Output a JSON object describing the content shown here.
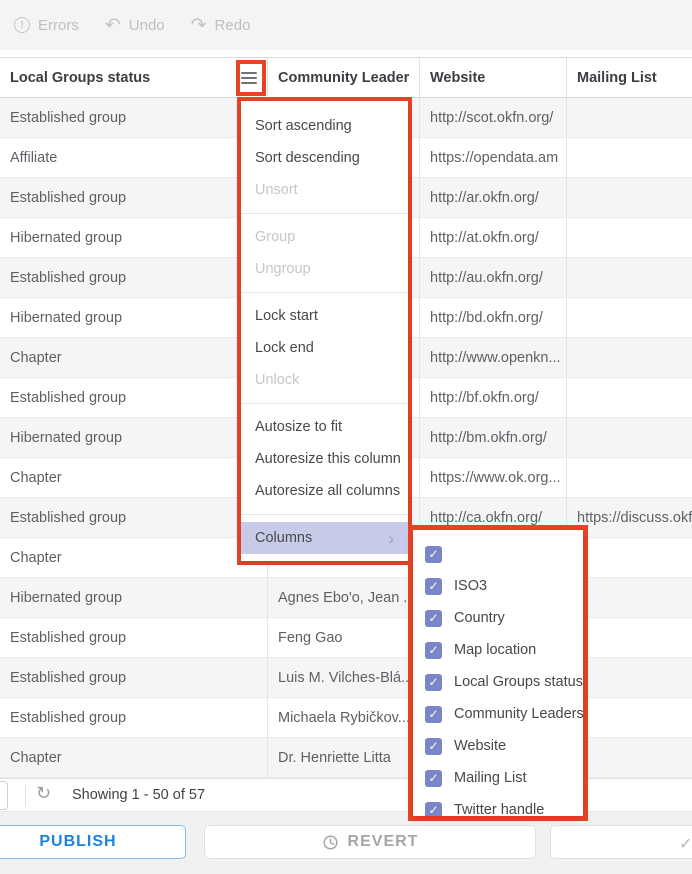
{
  "toolbar": {
    "errors_label": "Errors",
    "undo_label": "Undo",
    "redo_label": "Redo"
  },
  "grid": {
    "columns": [
      "Local Groups status",
      "Community Leader...",
      "Website",
      "Mailing List"
    ],
    "rows": [
      {
        "status": "Established group",
        "leader": "",
        "website": "http://scot.okfn.org/",
        "mailing": ""
      },
      {
        "status": "Affiliate",
        "leader": "",
        "website": "https://opendata.am",
        "mailing": ""
      },
      {
        "status": "Established group",
        "leader": "",
        "website": "http://ar.okfn.org/",
        "mailing": ""
      },
      {
        "status": "Hibernated group",
        "leader": "",
        "website": "http://at.okfn.org/",
        "mailing": ""
      },
      {
        "status": "Established group",
        "leader": "",
        "website": "http://au.okfn.org/",
        "mailing": ""
      },
      {
        "status": "Hibernated group",
        "leader": "",
        "website": "http://bd.okfn.org/",
        "mailing": ""
      },
      {
        "status": "Chapter",
        "leader": "",
        "website": "http://www.openkn...",
        "mailing": ""
      },
      {
        "status": "Established group",
        "leader": "",
        "website": "http://bf.okfn.org/",
        "mailing": ""
      },
      {
        "status": "Hibernated group",
        "leader": "",
        "website": "http://bm.okfn.org/",
        "mailing": ""
      },
      {
        "status": "Chapter",
        "leader": "",
        "website": "https://www.ok.org...",
        "mailing": ""
      },
      {
        "status": "Established group",
        "leader": "",
        "website": "http://ca.okfn.org/",
        "mailing": "https://discuss.okf"
      },
      {
        "status": "Chapter",
        "leader": "",
        "website": "",
        "mailing": ""
      },
      {
        "status": "Hibernated group",
        "leader": "Agnes Ebo'o, Jean ...",
        "website": "",
        "mailing": ""
      },
      {
        "status": "Established group",
        "leader": "Feng Gao",
        "website": "",
        "mailing": ""
      },
      {
        "status": "Established group",
        "leader": "Luis M. Vilches-Blá..",
        "website": "",
        "mailing": ""
      },
      {
        "status": "Established group",
        "leader": "Michaela Rybičkov...",
        "website": "",
        "mailing": ""
      },
      {
        "status": "Chapter",
        "leader": "Dr. Henriette Litta",
        "website": "",
        "mailing": ""
      }
    ]
  },
  "menu": {
    "items": [
      {
        "label": "Sort ascending",
        "enabled": true
      },
      {
        "label": "Sort descending",
        "enabled": true
      },
      {
        "label": "Unsort",
        "enabled": false
      },
      {
        "type": "separator"
      },
      {
        "label": "Group",
        "enabled": false
      },
      {
        "label": "Ungroup",
        "enabled": false
      },
      {
        "type": "separator"
      },
      {
        "label": "Lock start",
        "enabled": true
      },
      {
        "label": "Lock end",
        "enabled": true
      },
      {
        "label": "Unlock",
        "enabled": false
      },
      {
        "type": "separator"
      },
      {
        "label": "Autosize to fit",
        "enabled": true
      },
      {
        "label": "Autoresize this column",
        "enabled": true
      },
      {
        "label": "Autoresize all columns",
        "enabled": true
      },
      {
        "type": "separator"
      },
      {
        "label": "Columns",
        "enabled": true,
        "selected": true,
        "has_submenu": true
      }
    ]
  },
  "submenu": {
    "items": [
      {
        "label": "",
        "checked": true
      },
      {
        "label": "ISO3",
        "checked": true
      },
      {
        "label": "Country",
        "checked": true
      },
      {
        "label": "Map location",
        "checked": true
      },
      {
        "label": "Local Groups status",
        "checked": true
      },
      {
        "label": "Community Leaders",
        "checked": true
      },
      {
        "label": "Website",
        "checked": true
      },
      {
        "label": "Mailing List",
        "checked": true
      },
      {
        "label": "Twitter handle",
        "checked": true
      }
    ]
  },
  "statusbar": {
    "showing": "Showing 1 - 50 of 57"
  },
  "footer": {
    "publish_label": "PUBLISH",
    "revert_label": "REVERT"
  },
  "icons": {
    "errors": "exclamation-circle",
    "undo": "undo-arrow",
    "redo": "redo-arrow",
    "burger": "column-menu",
    "refresh": "refresh",
    "revert": "history-clock",
    "extra": "checkmark",
    "check": "checkmark"
  },
  "colors": {
    "highlight_red": "#e94325",
    "checkbox_indigo": "#7a86c8",
    "menu_selected_bg": "#c7cbe8",
    "publish_blue": "#1d82dd",
    "row_alt_bg": "#f5f5f6",
    "toolbar_bg": "#f4f4f5"
  }
}
